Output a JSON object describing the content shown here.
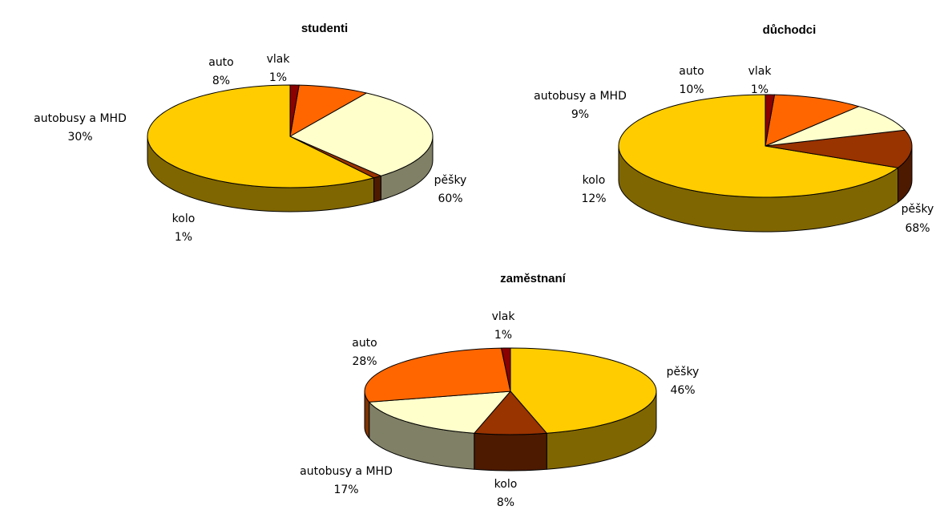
{
  "colors": {
    "pěšky": "#FFCC00",
    "kolo": "#993300",
    "autobusy a MHD": "#FFFFCC",
    "auto": "#FF6600",
    "vlak": "#8B0000"
  },
  "chart_data": [
    {
      "type": "pie",
      "style": "3d-pie",
      "title": "studenti",
      "categories": [
        "pěšky",
        "kolo",
        "autobusy a MHD",
        "auto",
        "vlak"
      ],
      "values": [
        60,
        1,
        30,
        8,
        1
      ],
      "labels": [
        {
          "name": "pěšky",
          "pct": "60%"
        },
        {
          "name": "kolo",
          "pct": "1%"
        },
        {
          "name": "autobusy a MHD",
          "pct": "30%"
        },
        {
          "name": "auto",
          "pct": "8%"
        },
        {
          "name": "vlak",
          "pct": "1%"
        }
      ]
    },
    {
      "type": "pie",
      "style": "3d-pie",
      "title": "důchodci",
      "categories": [
        "pěšky",
        "kolo",
        "autobusy a MHD",
        "auto",
        "vlak"
      ],
      "values": [
        68,
        12,
        9,
        10,
        1
      ],
      "labels": [
        {
          "name": "pěšky",
          "pct": "68%"
        },
        {
          "name": "kolo",
          "pct": "12%"
        },
        {
          "name": "autobusy a MHD",
          "pct": "9%"
        },
        {
          "name": "auto",
          "pct": "10%"
        },
        {
          "name": "vlak",
          "pct": "1%"
        }
      ]
    },
    {
      "type": "pie",
      "style": "3d-pie",
      "title": "zaměstnaní",
      "categories": [
        "pěšky",
        "kolo",
        "autobusy a MHD",
        "auto",
        "vlak"
      ],
      "values": [
        46,
        8,
        17,
        28,
        1
      ],
      "labels": [
        {
          "name": "pěšky",
          "pct": "46%"
        },
        {
          "name": "kolo",
          "pct": "8%"
        },
        {
          "name": "autobusy a MHD",
          "pct": "17%"
        },
        {
          "name": "auto",
          "pct": "28%"
        },
        {
          "name": "vlak",
          "pct": "1%"
        }
      ]
    }
  ]
}
